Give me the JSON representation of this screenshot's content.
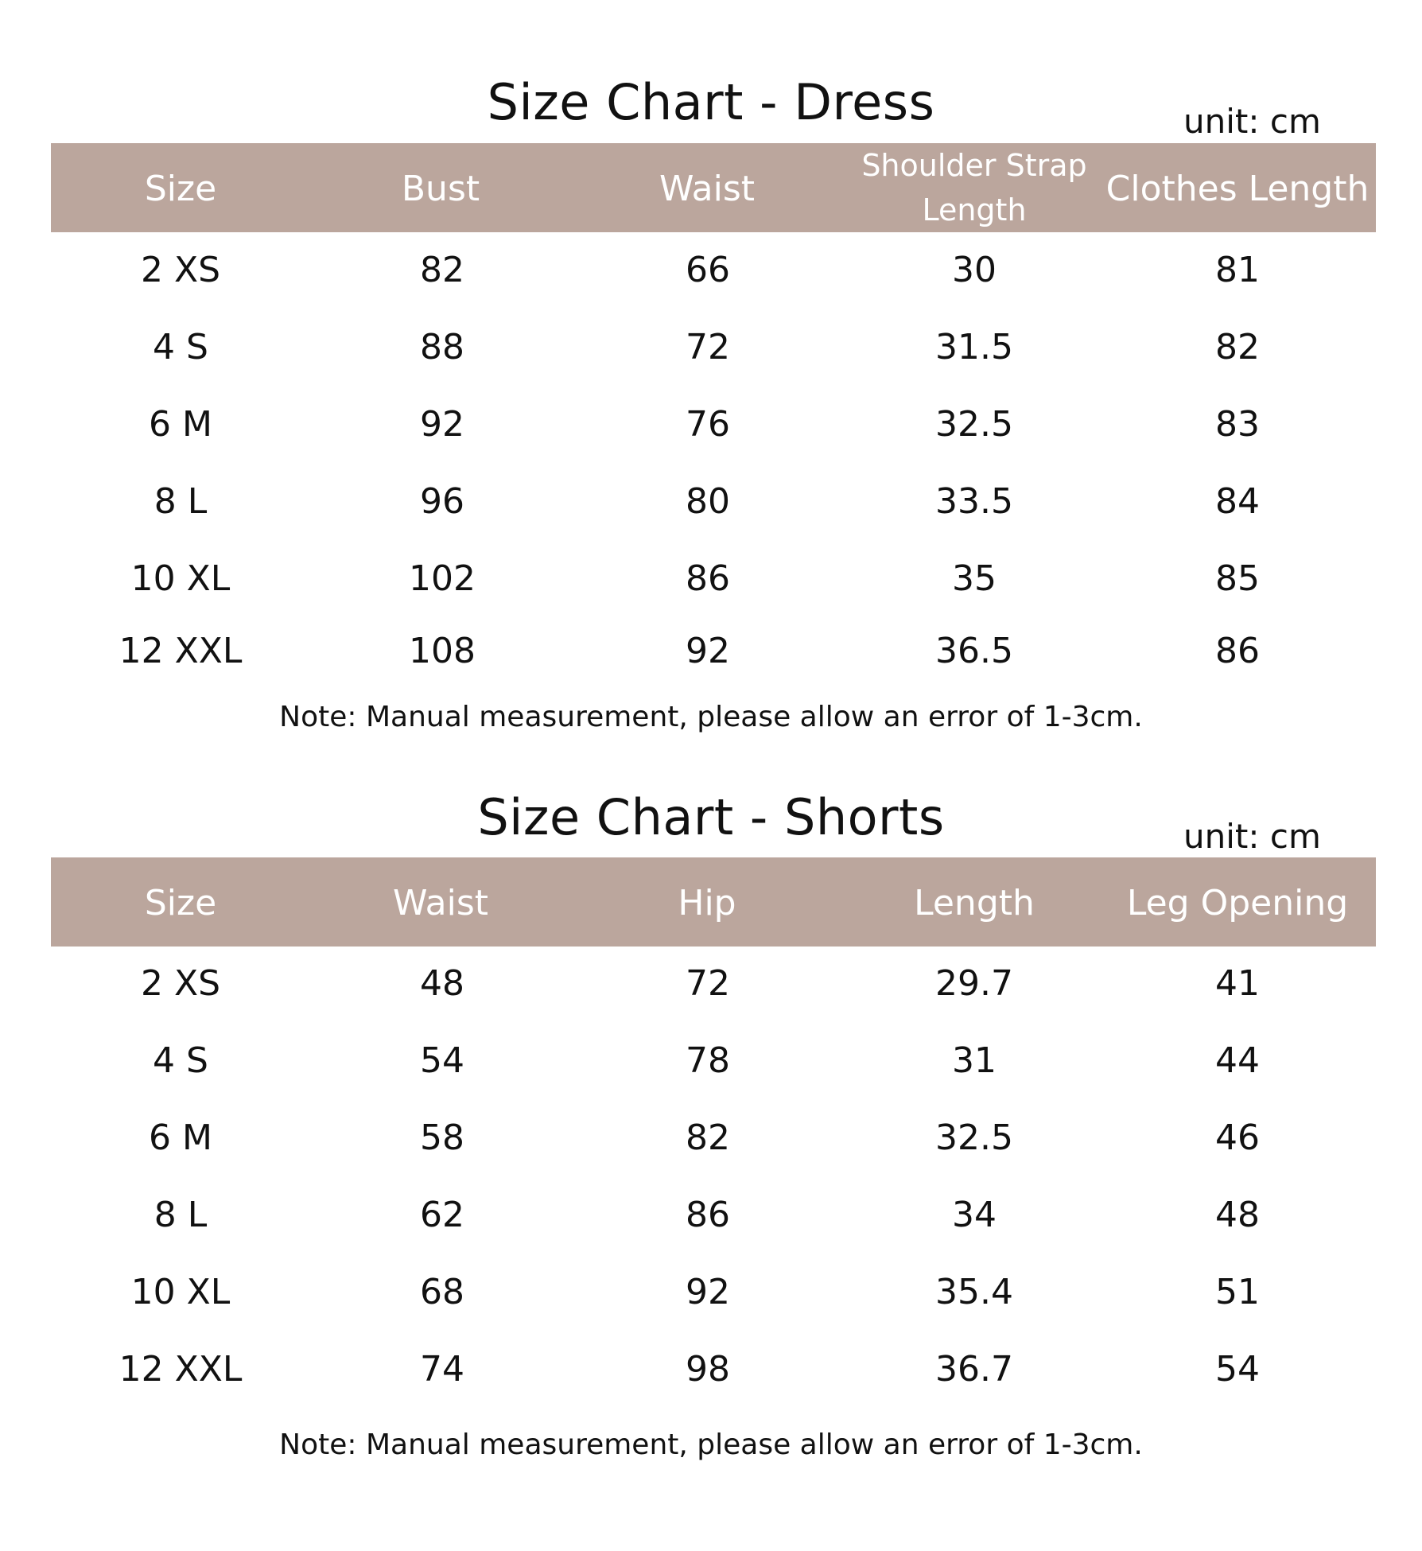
{
  "dress": {
    "title": "Size Chart - Dress",
    "unit": "unit: cm",
    "headers": [
      "Size",
      "Bust",
      "Waist",
      "Shoulder Strap Length",
      "Clothes Length"
    ],
    "rows": [
      [
        "2 XS",
        "82",
        "66",
        "30",
        "81"
      ],
      [
        "4 S",
        "88",
        "72",
        "31.5",
        "82"
      ],
      [
        "6 M",
        "92",
        "76",
        "32.5",
        "83"
      ],
      [
        "8 L",
        "96",
        "80",
        "33.5",
        "84"
      ],
      [
        "10 XL",
        "102",
        "86",
        "35",
        "85"
      ],
      [
        "12 XXL",
        "108",
        "92",
        "36.5",
        "86"
      ]
    ],
    "note": "Note: Manual measurement, please allow an error of 1-3cm."
  },
  "shorts": {
    "title": "Size Chart - Shorts",
    "unit": "unit: cm",
    "headers": [
      "Size",
      "Waist",
      "Hip",
      "Length",
      "Leg Opening"
    ],
    "rows": [
      [
        "2 XS",
        "48",
        "72",
        "29.7",
        "41"
      ],
      [
        "4 S",
        "54",
        "78",
        "31",
        "44"
      ],
      [
        "6 M",
        "58",
        "82",
        "32.5",
        "46"
      ],
      [
        "8 L",
        "62",
        "86",
        "34",
        "48"
      ],
      [
        "10 XL",
        "68",
        "92",
        "35.4",
        "51"
      ],
      [
        "12 XXL",
        "74",
        "98",
        "36.7",
        "54"
      ]
    ],
    "note": "Note: Manual measurement, please allow an error of 1-3cm."
  },
  "colors": {
    "header_bg": "#bba69d",
    "header_text": "#ffffff",
    "text": "#111111",
    "background": "#ffffff"
  }
}
